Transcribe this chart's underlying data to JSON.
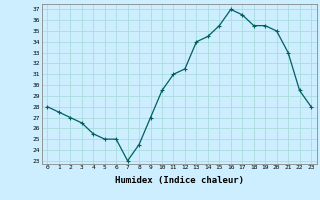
{
  "xlabel": "Humidex (Indice chaleur)",
  "ylabel": "",
  "x_values": [
    0,
    1,
    2,
    3,
    4,
    5,
    6,
    7,
    8,
    9,
    10,
    11,
    12,
    13,
    14,
    15,
    16,
    17,
    18,
    19,
    20,
    21,
    22,
    23
  ],
  "y_values": [
    28,
    27.5,
    27,
    26.5,
    25.5,
    25,
    25,
    23,
    24.5,
    27,
    29.5,
    31,
    31.5,
    34,
    34.5,
    35.5,
    37,
    36.5,
    35.5,
    35.5,
    35,
    33,
    29.5,
    28
  ],
  "line_color": "#006060",
  "marker": "+",
  "marker_size": 3.5,
  "bg_color": "#cceeff",
  "grid_color": "#aadddd",
  "ylim": [
    23,
    37
  ],
  "xlim": [
    -0.5,
    23.5
  ],
  "xtick_labels": [
    "0",
    "1",
    "2",
    "3",
    "4",
    "5",
    "6",
    "7",
    "8",
    "9",
    "10",
    "11",
    "12",
    "13",
    "14",
    "15",
    "16",
    "17",
    "18",
    "19",
    "20",
    "21",
    "22",
    "23"
  ]
}
